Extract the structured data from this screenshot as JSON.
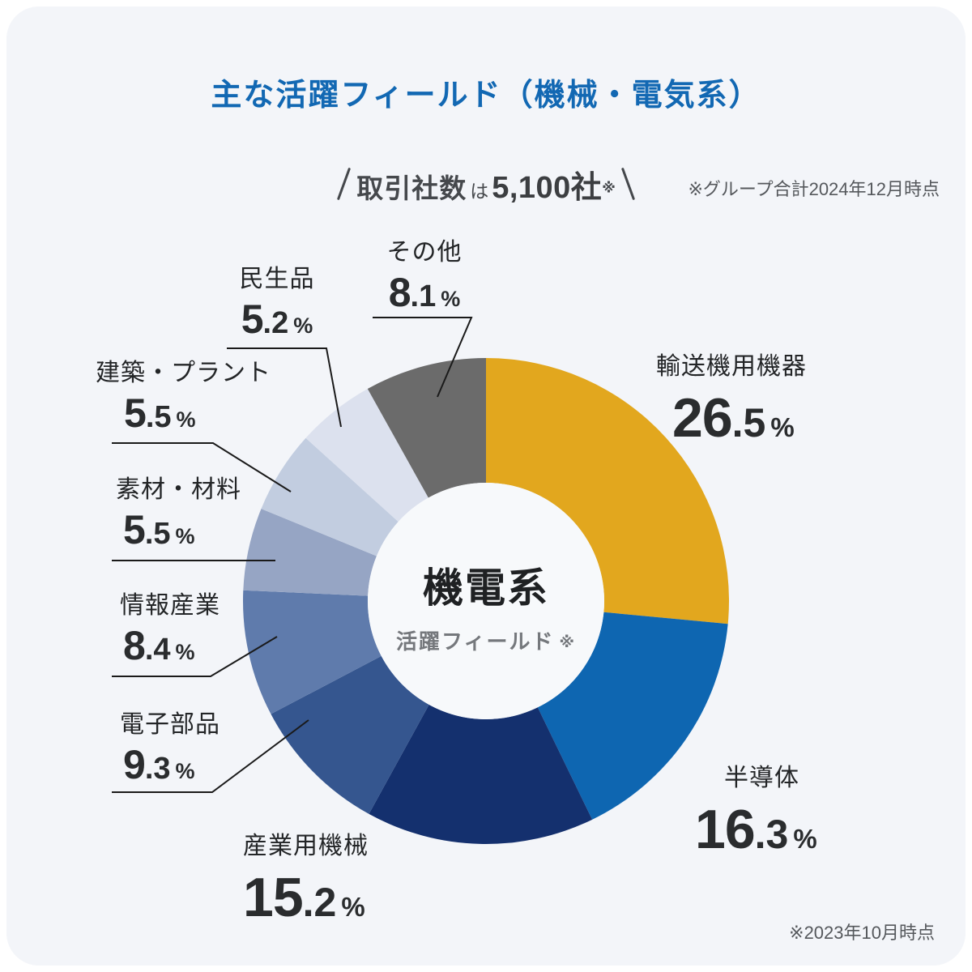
{
  "page": {
    "title": "主な活躍フィールド（機械・電気系）",
    "subtitle": {
      "slash_left": "＼",
      "prefix": "取引社数",
      "particle": "は",
      "count": "5,100社",
      "asterisk": "※",
      "slash_right": "／"
    },
    "note_top_right": "※グループ合計2024年12月時点",
    "note_bottom_right": "※2023年10月時点"
  },
  "chart_data": {
    "type": "pie",
    "variant": "donut",
    "title": "主な活躍フィールド（機械・電気系）",
    "direction": "clockwise-from-top",
    "start_angle_deg": 0,
    "unit": "%",
    "center": {
      "label": "機電系",
      "sublabel": "活躍フィールド",
      "sublabel_mark": "※"
    },
    "segments": [
      {
        "name_en": "transport-equipment",
        "label": "輸送機用機器",
        "value": 26.5,
        "color": "#E2A71E"
      },
      {
        "name_en": "semiconductor",
        "label": "半導体",
        "value": 16.3,
        "color": "#0E66B1"
      },
      {
        "name_en": "industrial-machinery",
        "label": "産業用機械",
        "value": 15.2,
        "color": "#14306E"
      },
      {
        "name_en": "electronic-components",
        "label": "電子部品",
        "value": 9.3,
        "color": "#35568F"
      },
      {
        "name_en": "information-industry",
        "label": "情報産業",
        "value": 8.4,
        "color": "#5F7BAC"
      },
      {
        "name_en": "materials",
        "label": "素材・材料",
        "value": 5.5,
        "color": "#96A5C4"
      },
      {
        "name_en": "construction-plant",
        "label": "建築・プラント",
        "value": 5.5,
        "color": "#C2CDE0"
      },
      {
        "name_en": "consumer-products",
        "label": "民生品",
        "value": 5.2,
        "color": "#DCE1EE"
      },
      {
        "name_en": "others",
        "label": "その他",
        "value": 8.1,
        "color": "#6B6B6B"
      }
    ]
  },
  "colors": {
    "title": "#1268B3",
    "card_bg": "#F3F5F9",
    "hole_bg": "#F7F9FB",
    "text_dark": "#2A2C2E",
    "text_gray": "#55585C",
    "leader_line": "#1A1A1A"
  }
}
